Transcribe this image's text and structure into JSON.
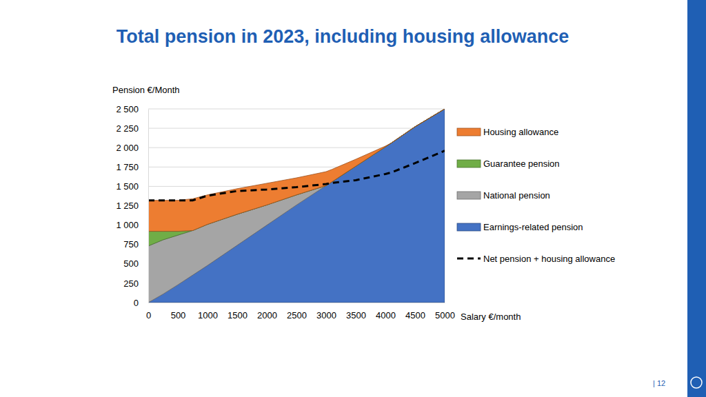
{
  "chart_data": {
    "type": "area",
    "title": "Total pension in 2023, including housing allowance",
    "y_label": "Pension €/Month",
    "x_label": "Salary €/month",
    "x": [
      0,
      250,
      500,
      750,
      1000,
      1500,
      2000,
      2500,
      3000,
      3100,
      3500,
      4000,
      4100,
      4500,
      5000
    ],
    "series": [
      {
        "name": "Housing allowance",
        "color": "#ed7d31",
        "type": "area",
        "values": [
          400,
          400,
          400,
          410,
          380,
          330,
          280,
          220,
          180,
          160,
          90,
          10,
          0,
          0,
          0
        ]
      },
      {
        "name": "Guarantee pension",
        "color": "#70ad47",
        "type": "area",
        "values": [
          190,
          110,
          50,
          0,
          0,
          0,
          0,
          0,
          0,
          0,
          0,
          0,
          0,
          0,
          0
        ]
      },
      {
        "name": "National pension",
        "color": "#a5a5a5",
        "type": "area",
        "values": [
          730,
          700,
          640,
          575,
          530,
          400,
          260,
          130,
          0,
          0,
          0,
          0,
          0,
          0,
          0
        ]
      },
      {
        "name": "Earnings-related pension",
        "color": "#4472c4",
        "type": "area",
        "values": [
          0,
          110,
          230,
          355,
          480,
          740,
          1000,
          1260,
          1510,
          1560,
          1760,
          2010,
          2060,
          2270,
          2500
        ]
      },
      {
        "name": "Net pension + housing allowance",
        "color": "#000000",
        "type": "line",
        "line_style": "dashed",
        "values": [
          1320,
          1320,
          1320,
          1320,
          1380,
          1440,
          1460,
          1490,
          1530,
          1545,
          1580,
          1660,
          1680,
          1800,
          1960
        ]
      }
    ],
    "xlim": [
      0,
      5000
    ],
    "xticks": [
      0,
      500,
      1000,
      1500,
      2000,
      2500,
      3000,
      3500,
      4000,
      4500,
      5000
    ],
    "ylim": [
      0,
      2500
    ],
    "yticks": [
      0,
      250,
      500,
      750,
      {
        "value": 1000,
        "label": "1 000"
      },
      {
        "value": 1250,
        "label": "1 250"
      },
      {
        "value": 1500,
        "label": "1 500"
      },
      {
        "value": 1750,
        "label": "1 750"
      },
      {
        "value": 2000,
        "label": "2 000"
      },
      {
        "value": 2250,
        "label": "2 250"
      },
      {
        "value": 2500,
        "label": "2 500"
      }
    ],
    "grid": true,
    "stacked": true,
    "legend": "right"
  },
  "footer": {
    "page_number": "| 12"
  }
}
